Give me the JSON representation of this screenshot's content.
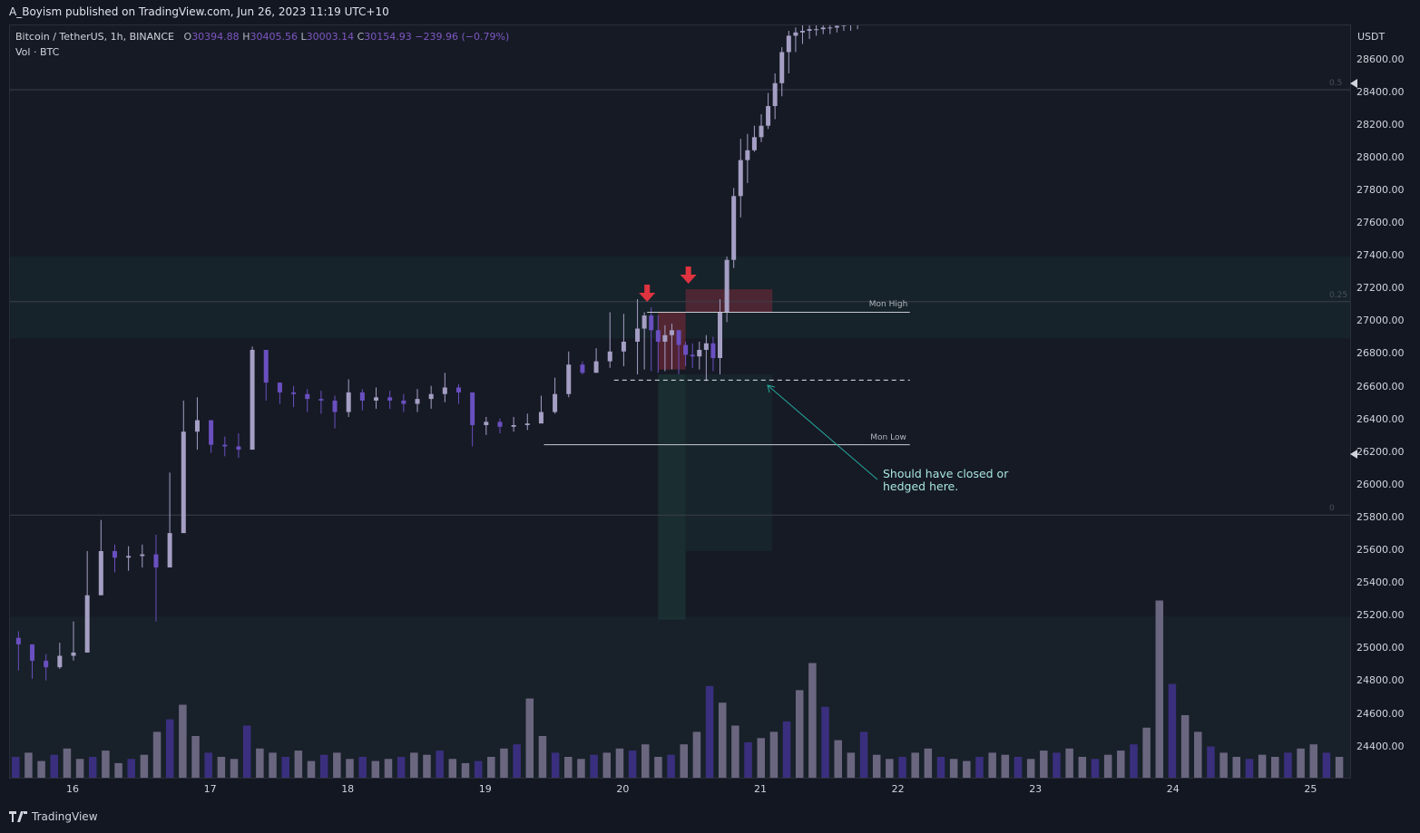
{
  "header": {
    "publish_line": "A_Boyism published on TradingView.com, Jun 26, 2023 11:19 UTC+10"
  },
  "legend": {
    "symbol": "Bitcoin / TetherUS, 1h, BINANCE",
    "open_label": "O",
    "open": "30394.88",
    "high_label": "H",
    "high": "30405.56",
    "low_label": "L",
    "low": "30003.14",
    "close_label": "C",
    "close": "30154.93",
    "change": "−239.96 (−0.79%)",
    "volume": "Vol · BTC"
  },
  "colors": {
    "background": "#131722",
    "candle_up": "#a59fc4",
    "candle_down": "#6a4fc0",
    "volume_up": "#6b6680",
    "volume_down": "#3a2f7e",
    "zone": "#1a2b2f",
    "arrow": "#e03340",
    "annotation": "#26a69a"
  },
  "price_scale": {
    "currency": "USDT",
    "ticks": [
      "28600.00",
      "28400.00",
      "28200.00",
      "28000.00",
      "27800.00",
      "27600.00",
      "27400.00",
      "27200.00",
      "27000.00",
      "26800.00",
      "26600.00",
      "26400.00",
      "26200.00",
      "26000.00",
      "25800.00",
      "25600.00",
      "25400.00",
      "25200.00",
      "25000.00",
      "24800.00",
      "24600.00",
      "24400.00"
    ]
  },
  "time_scale": {
    "ticks": [
      "16",
      "17",
      "18",
      "19",
      "20",
      "21",
      "22",
      "23",
      "24",
      "25"
    ]
  },
  "levels": {
    "mon_high": {
      "label": "Mon High",
      "price": 27060
    },
    "mon_low": {
      "label": "Mon Low",
      "price": 26250
    },
    "hedge_line": {
      "price": 26645
    },
    "fib": [
      {
        "label": "0.5",
        "price": 28420
      },
      {
        "label": "0.25",
        "price": 27125
      },
      {
        "label": "0",
        "price": 25820
      }
    ]
  },
  "annotation": {
    "line1": "Should have closed or",
    "line2": "hedged here."
  },
  "footer": {
    "brand": "TradingView"
  },
  "chart_data": {
    "type": "candlestick",
    "title": "Bitcoin / TetherUS, 1h, BINANCE",
    "ylabel": "USDT",
    "ylim": [
      24200,
      28960
    ],
    "x_ticks": [
      "16",
      "17",
      "18",
      "19",
      "20",
      "21",
      "22",
      "23",
      "24",
      "25"
    ],
    "series": [
      {
        "name": "BTC/USDT price (approx. 2-hour samples, read off chart)",
        "x_days": [
          15.6,
          15.7,
          15.8,
          15.9,
          16.0,
          16.1,
          16.2,
          16.3,
          16.4,
          16.5,
          16.6,
          16.7,
          16.8,
          16.9,
          17.0,
          17.1,
          17.2,
          17.3,
          17.4,
          17.5,
          17.6,
          17.7,
          17.8,
          17.9,
          18.0,
          18.1,
          18.2,
          18.3,
          18.4,
          18.5,
          18.6,
          18.7,
          18.8,
          18.9,
          19.0,
          19.1,
          19.2,
          19.3,
          19.4,
          19.5,
          19.6,
          19.7,
          19.8,
          19.9,
          20.0,
          20.1,
          20.15,
          20.2,
          20.25,
          20.3,
          20.35,
          20.4,
          20.45,
          20.5,
          20.55,
          20.6,
          20.65,
          20.7,
          20.75,
          20.8,
          20.85,
          20.9,
          20.95,
          21.0,
          21.05,
          21.1,
          21.15,
          21.2,
          21.25,
          21.3,
          21.35,
          21.4,
          21.45,
          21.5,
          21.55,
          21.6,
          21.65,
          21.7
        ],
        "close": [
          25030,
          24930,
          24890,
          24960,
          24980,
          25330,
          25600,
          25560,
          25570,
          25580,
          25500,
          25710,
          26330,
          26400,
          26250,
          26240,
          26220,
          26830,
          26630,
          26570,
          26560,
          26530,
          26520,
          26450,
          26570,
          26520,
          26540,
          26520,
          26500,
          26530,
          26560,
          26600,
          26570,
          26370,
          26390,
          26360,
          26370,
          26380,
          26450,
          26560,
          26740,
          26690,
          26760,
          26820,
          26880,
          26960,
          27040,
          26950,
          26880,
          26920,
          26950,
          26860,
          26800,
          26790,
          26830,
          26870,
          26780,
          27060,
          27380,
          27770,
          27990,
          28050,
          28130,
          28200,
          28320,
          28460,
          28650,
          28750,
          28770,
          28780,
          28790,
          28790,
          28800,
          28800,
          28810,
          28820,
          28820,
          28830
        ],
        "low": [
          24870,
          24820,
          24810,
          24880,
          24930,
          25070,
          25460,
          25470,
          25480,
          25500,
          25170,
          25520,
          25930,
          26220,
          26200,
          26180,
          26170,
          26300,
          26520,
          26500,
          26480,
          26450,
          26440,
          26350,
          26420,
          26460,
          26470,
          26470,
          26450,
          26450,
          26470,
          26510,
          26500,
          26240,
          26310,
          26320,
          26330,
          26340,
          26390,
          26440,
          26540,
          26680,
          26690,
          26720,
          26730,
          26680,
          26710,
          26700,
          26690,
          26700,
          26710,
          26680,
          26730,
          26720,
          26710,
          26640,
          26700,
          26680,
          27000,
          27330,
          27640,
          27850,
          28040,
          28100,
          28180,
          28240,
          28380,
          28520,
          28650,
          28700,
          28730,
          28750,
          28760,
          28760,
          28770,
          28780,
          28780,
          28790
        ],
        "high": [
          25110,
          25010,
          24970,
          25040,
          25170,
          25600,
          25790,
          25640,
          25630,
          25640,
          25700,
          26080,
          26520,
          26540,
          26310,
          26300,
          26320,
          26850,
          26680,
          26620,
          26610,
          26590,
          26580,
          26550,
          26650,
          26590,
          26600,
          26580,
          26560,
          26590,
          26610,
          26690,
          26620,
          26430,
          26420,
          26410,
          26420,
          26440,
          26550,
          26660,
          26820,
          26760,
          26840,
          27060,
          27050,
          27140,
          27060,
          27090,
          27040,
          26980,
          26990,
          26950,
          26880,
          26870,
          26880,
          26920,
          26910,
          27140,
          27400,
          27820,
          28120,
          28150,
          28200,
          28270,
          28400,
          28520,
          28680,
          28780,
          28800,
          28820,
          28830,
          28840,
          28840,
          28850,
          28850,
          28860,
          28860,
          28870
        ]
      }
    ],
    "volume": {
      "name": "Vol · BTC",
      "levels_0_to_1": [
        0.1,
        0.12,
        0.08,
        0.11,
        0.14,
        0.09,
        0.1,
        0.13,
        0.07,
        0.09,
        0.11,
        0.22,
        0.28,
        0.35,
        0.2,
        0.12,
        0.1,
        0.09,
        0.25,
        0.14,
        0.12,
        0.1,
        0.13,
        0.08,
        0.11,
        0.12,
        0.09,
        0.1,
        0.08,
        0.09,
        0.1,
        0.12,
        0.11,
        0.13,
        0.09,
        0.07,
        0.08,
        0.1,
        0.14,
        0.16,
        0.38,
        0.2,
        0.12,
        0.1,
        0.09,
        0.11,
        0.12,
        0.14,
        0.13,
        0.16,
        0.1,
        0.11,
        0.16,
        0.22,
        0.44,
        0.36,
        0.25,
        0.17,
        0.19,
        0.22,
        0.27,
        0.42,
        0.55,
        0.34,
        0.18,
        0.12,
        0.22,
        0.11,
        0.09,
        0.1,
        0.12,
        0.14,
        0.1,
        0.09,
        0.08,
        0.1,
        0.12,
        0.11,
        0.1,
        0.09,
        0.13,
        0.12,
        0.14,
        0.1,
        0.09,
        0.11,
        0.13,
        0.16,
        0.24,
        0.85,
        0.45,
        0.3,
        0.22,
        0.15,
        0.12,
        0.1,
        0.09,
        0.11,
        0.1,
        0.12,
        0.14,
        0.16,
        0.12,
        0.1
      ]
    }
  }
}
